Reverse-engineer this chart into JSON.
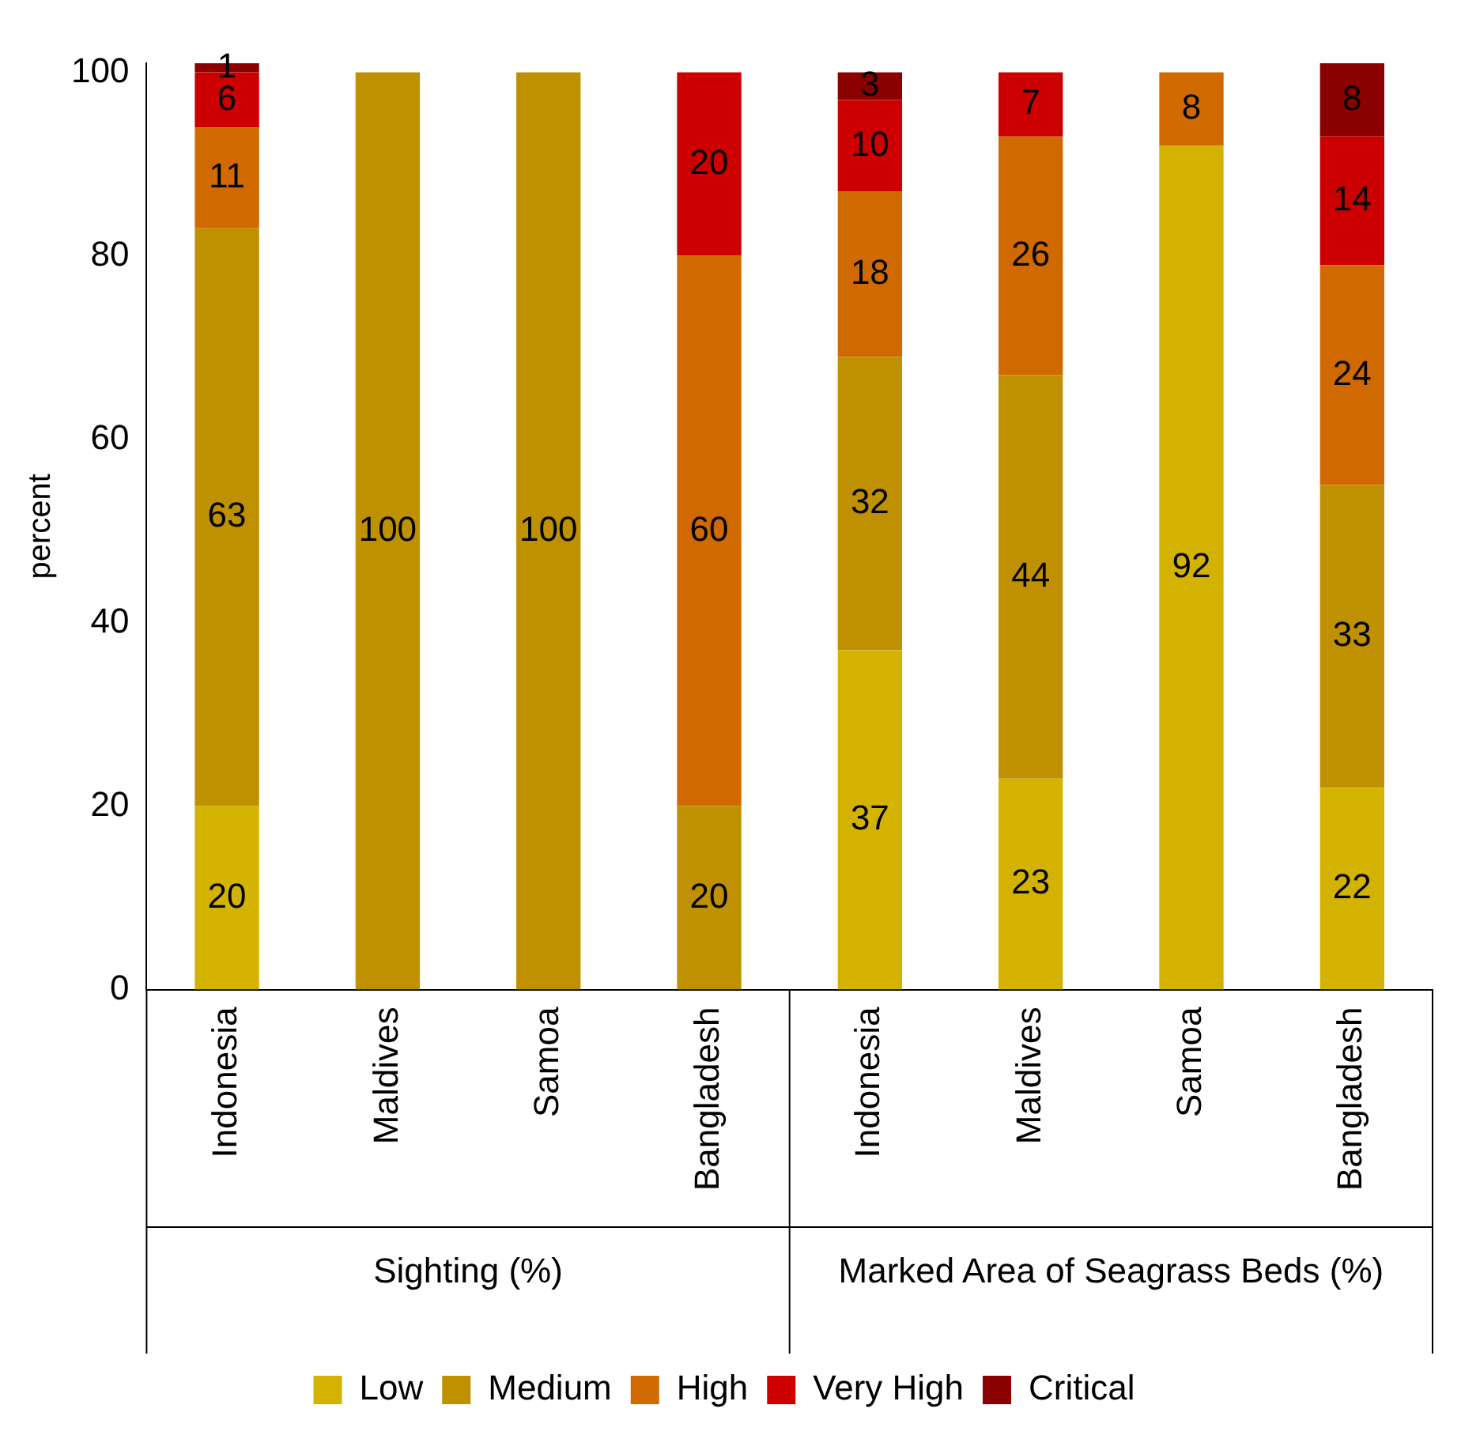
{
  "chart_data": {
    "type": "bar",
    "stacked": true,
    "ylabel": "percent",
    "categories": [
      "Indonesia",
      "Maldives",
      "Samoa",
      "Bangladesh",
      "Indonesia",
      "Maldives",
      "Samoa",
      "Bangladesh"
    ],
    "annotations": [
      "Sighting (%)",
      "Marked Area of Seagrass Beds (%)"
    ],
    "series": [
      {
        "name": "Low",
        "color": "#d4b300",
        "values": [
          20,
          null,
          null,
          null,
          37,
          23,
          92,
          22
        ]
      },
      {
        "name": "Medium",
        "color": "#bf9000",
        "values": [
          63,
          100,
          100,
          20,
          32,
          44,
          null,
          33
        ]
      },
      {
        "name": "High",
        "color": "#d06a00",
        "values": [
          11,
          null,
          null,
          60,
          18,
          26,
          8,
          24
        ]
      },
      {
        "name": "Very High",
        "color": "#cc0000",
        "values": [
          6,
          null,
          null,
          20,
          10,
          7,
          null,
          14
        ]
      },
      {
        "name": "Critical",
        "color": "#8b0000",
        "values": [
          1,
          null,
          null,
          null,
          3,
          null,
          null,
          8
        ]
      }
    ],
    "ylim": [
      0,
      101
    ],
    "yticks": [
      0,
      20,
      40,
      60,
      80,
      100
    ],
    "grid": false,
    "legend": "bottom",
    "data_labels": true
  }
}
